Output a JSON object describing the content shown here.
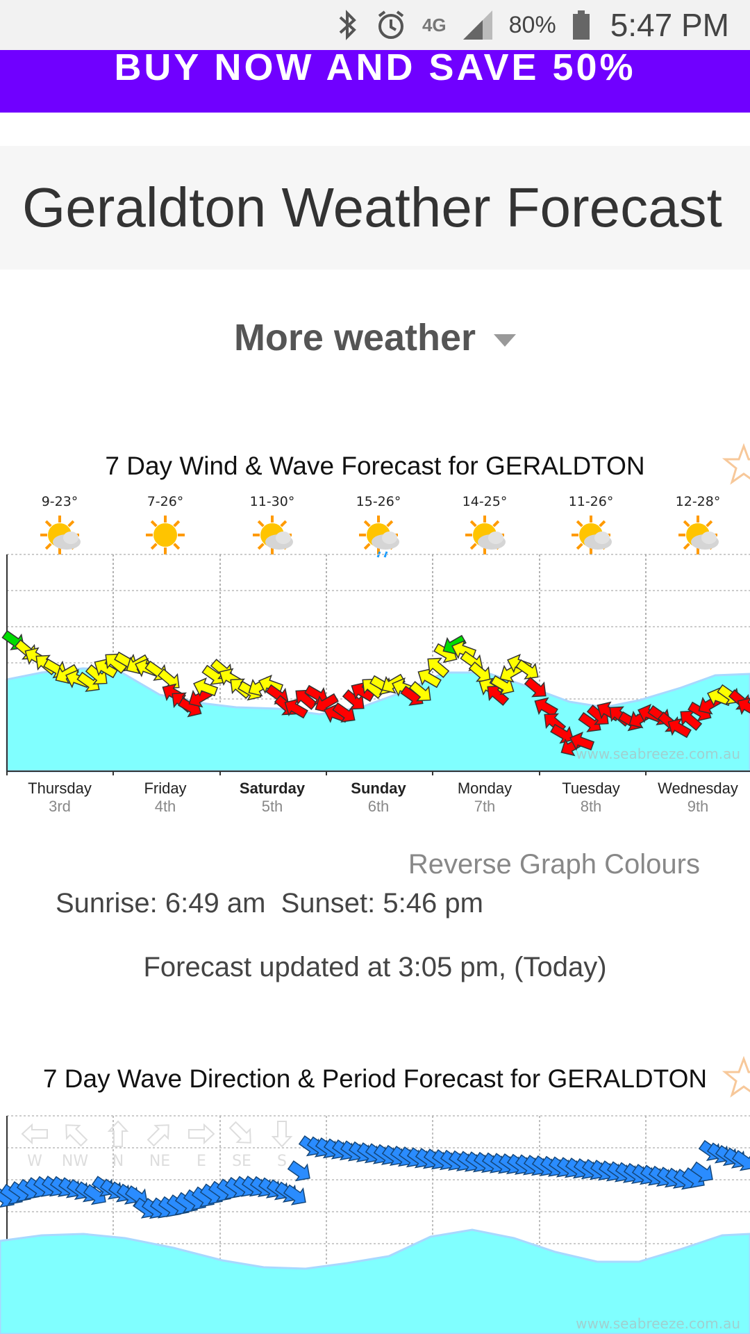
{
  "status_bar": {
    "battery": "80%",
    "time": "5:47 PM",
    "network": "4G"
  },
  "promo": {
    "text": "BUY NOW AND SAVE 50%"
  },
  "page": {
    "title": "Geraldton Weather Forecast"
  },
  "more_weather": {
    "label": "More weather"
  },
  "wind_chart": {
    "title": "7 Day Wind & Wave Forecast for GERALDTON",
    "temps": [
      "9-23°",
      "7-26°",
      "11-30°",
      "15-26°",
      "14-25°",
      "11-26°",
      "12-28°"
    ],
    "weather_icons": [
      "partly-cloudy-icon",
      "sunny-icon",
      "partly-cloudy-icon",
      "showers-icon",
      "partly-cloudy-icon",
      "partly-cloudy-icon",
      "partly-cloudy-icon"
    ],
    "watermark": "www.seabreeze.com.au",
    "days": [
      {
        "name": "Thursday",
        "date": "3rd",
        "bold": false
      },
      {
        "name": "Friday",
        "date": "4th",
        "bold": false
      },
      {
        "name": "Saturday",
        "date": "5th",
        "bold": true
      },
      {
        "name": "Sunday",
        "date": "6th",
        "bold": true
      },
      {
        "name": "Monday",
        "date": "7th",
        "bold": false
      },
      {
        "name": "Tuesday",
        "date": "8th",
        "bold": false
      },
      {
        "name": "Wednesday",
        "date": "9th",
        "bold": false
      }
    ],
    "colors": {
      "wave": "#80ffff",
      "light_wind": "#ffff00",
      "strong_wind": "#ff0000",
      "calm_wind": "#00dd00"
    }
  },
  "reverse_colours": {
    "label": "Reverse Graph Colours"
  },
  "sun": {
    "sunrise": "Sunrise: 6:49 am",
    "sunset": "Sunset: 5:46 pm"
  },
  "updated": {
    "text": "Forecast updated at 3:05 pm, (Today)"
  },
  "wave_chart": {
    "title": "7 Day Wave Direction & Period Forecast for GERALDTON",
    "compass": [
      "W",
      "NW",
      "N",
      "NE",
      "E",
      "SE",
      "S"
    ],
    "watermark": "www.seabreeze.com.au",
    "colors": {
      "wave": "#80ffff",
      "arrow": "#2a8cff"
    }
  }
}
